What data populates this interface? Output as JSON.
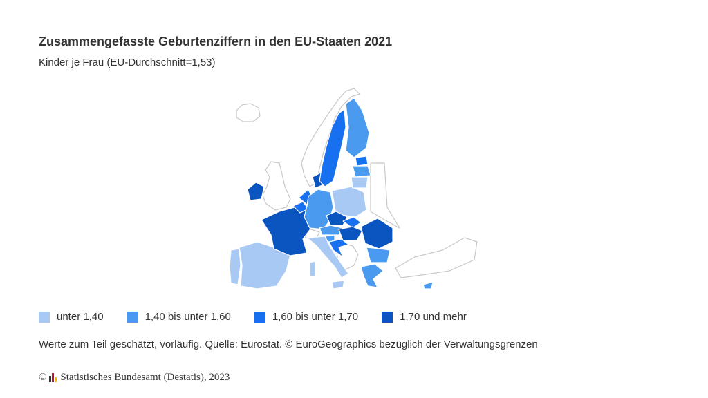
{
  "title": "Zusammengefasste Geburtenziffern in den EU-Staaten 2021",
  "subtitle": "Kinder je Frau (EU-Durchschnitt=1,53)",
  "colors": {
    "unter_140": "#a9c9f5",
    "bis_160": "#4a9af0",
    "bis_170": "#1670f0",
    "ab_170": "#0b55c0",
    "non_eu_stroke": "#c8c8c8"
  },
  "legend": [
    {
      "label": "unter 1,40",
      "color": "#a9c9f5"
    },
    {
      "label": "1,40 bis unter 1,60",
      "color": "#4a9af0"
    },
    {
      "label": "1,60 bis unter 1,70",
      "color": "#1670f0"
    },
    {
      "label": "1,70 und mehr",
      "color": "#0b55c0"
    }
  ],
  "note": "Werte zum Teil geschätzt, vorläufig. Quelle: Eurostat. © EuroGeographics bezüglich der Verwaltungsgrenzen",
  "copyright": {
    "symbol": "©",
    "text": "Statistisches Bundesamt (Destatis), 2023"
  }
}
